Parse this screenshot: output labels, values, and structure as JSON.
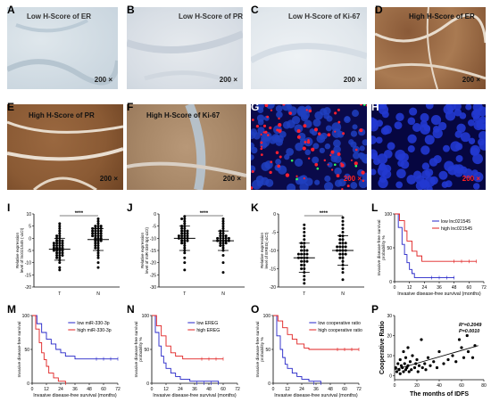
{
  "panels": {
    "A": {
      "letter": "A",
      "caption": "Low H-Score of ER",
      "mag": "200 ×"
    },
    "B": {
      "letter": "B",
      "caption": "Low H-Score of PR",
      "mag": "200 ×"
    },
    "C": {
      "letter": "C",
      "caption": "Low H-Score of Ki-67",
      "mag": "200 ×"
    },
    "D": {
      "letter": "D",
      "caption": "High H-Score of ER",
      "mag": "200 ×"
    },
    "E": {
      "letter": "E",
      "caption": "High H-Score of PR",
      "mag": "200 ×"
    },
    "F": {
      "letter": "F",
      "caption": "High H-Score of Ki-67",
      "mag": "200 ×"
    },
    "G": {
      "letter": "G",
      "caption": "",
      "mag": "200 ×"
    },
    "H": {
      "letter": "H",
      "caption": "",
      "mag": "200 ×"
    }
  },
  "chart_data": [
    {
      "id": "I",
      "type": "scatter",
      "ylabel": "Relative expression level of lnc021545 (-ΔCt)",
      "categories": [
        "T",
        "N"
      ],
      "yticks": [
        -20,
        -15,
        -10,
        -5,
        0,
        5,
        10
      ],
      "ylim": [
        -20,
        10
      ],
      "sig": "****",
      "series": [
        {
          "name": "T",
          "mean": -4.5,
          "sd": 4.5,
          "values": [
            -13,
            -12,
            -10,
            -9,
            -8,
            -8,
            -7,
            -7,
            -7,
            -6,
            -6,
            -6,
            -5,
            -5,
            -5,
            -5,
            -4,
            -4,
            -4,
            -4,
            -3,
            -3,
            -3,
            -3,
            -2,
            -2,
            -2,
            -2,
            -1,
            -1,
            -1,
            0,
            0,
            1,
            1,
            2,
            3,
            4,
            5,
            6
          ]
        },
        {
          "name": "N",
          "mean": -0.5,
          "sd": 4.5,
          "values": [
            -12,
            -10,
            -8,
            -7,
            -6,
            -5,
            -4,
            -4,
            -3,
            -3,
            -2,
            -2,
            -1,
            -1,
            -1,
            0,
            0,
            0,
            1,
            1,
            1,
            1,
            2,
            2,
            2,
            2,
            3,
            3,
            3,
            3,
            4,
            4,
            4,
            4,
            5,
            5,
            5,
            6,
            7,
            8
          ]
        }
      ]
    },
    {
      "id": "J",
      "type": "scatter",
      "ylabel": "Relative expression level of miR-330-3p(-ΔCt)",
      "categories": [
        "T",
        "N"
      ],
      "yticks": [
        -30,
        -25,
        -20,
        -15,
        -10,
        -5,
        0
      ],
      "ylim": [
        -30,
        0
      ],
      "sig": "****",
      "series": [
        {
          "name": "T",
          "mean": -10,
          "sd": 5,
          "values": [
            -23,
            -20,
            -18,
            -16,
            -15,
            -14,
            -13,
            -12,
            -12,
            -11,
            -11,
            -11,
            -10,
            -10,
            -10,
            -10,
            -9,
            -9,
            -9,
            -9,
            -8,
            -8,
            -8,
            -7,
            -7,
            -7,
            -6,
            -6,
            -5,
            -5,
            -4,
            -3,
            -2,
            -2,
            -1
          ]
        },
        {
          "name": "N",
          "mean": -11,
          "sd": 4,
          "values": [
            -24,
            -20,
            -17,
            -15,
            -14,
            -13,
            -13,
            -12,
            -12,
            -12,
            -11,
            -11,
            -11,
            -11,
            -11,
            -10,
            -10,
            -10,
            -10,
            -10,
            -9,
            -9,
            -9,
            -8,
            -8,
            -7,
            -7,
            -6,
            -5,
            -4,
            -3,
            -2
          ]
        }
      ]
    },
    {
      "id": "K",
      "type": "scatter",
      "ylabel": "Relative expression level of EREG(-ΔCt)",
      "categories": [
        "T",
        "N"
      ],
      "yticks": [
        -20,
        -15,
        -10,
        -5,
        0
      ],
      "ylim": [
        -20,
        0
      ],
      "sig": "****",
      "series": [
        {
          "name": "T",
          "mean": -12,
          "sd": 4,
          "values": [
            -19,
            -18,
            -17,
            -16,
            -15,
            -15,
            -14,
            -14,
            -13,
            -13,
            -13,
            -12,
            -12,
            -12,
            -12,
            -11,
            -11,
            -11,
            -11,
            -10,
            -10,
            -10,
            -9,
            -9,
            -8,
            -8,
            -7,
            -6,
            -5,
            -4,
            -3
          ]
        },
        {
          "name": "N",
          "mean": -10,
          "sd": 4,
          "values": [
            -18,
            -16,
            -15,
            -14,
            -13,
            -12,
            -12,
            -11,
            -11,
            -11,
            -10,
            -10,
            -10,
            -10,
            -9,
            -9,
            -9,
            -9,
            -8,
            -8,
            -8,
            -7,
            -7,
            -6,
            -6,
            -5,
            -4,
            -3,
            -2,
            -1
          ]
        }
      ]
    },
    {
      "id": "L",
      "type": "line",
      "ylabel": "Invasive disease-free survival probability %",
      "xlabel": "Invasive disease-free survival (months)",
      "xticks": [
        0,
        12,
        24,
        36,
        48,
        60,
        72
      ],
      "yticks": [
        0,
        50,
        100
      ],
      "xlim": [
        0,
        72
      ],
      "ylim": [
        0,
        100
      ],
      "series": [
        {
          "name": "low lnc021545",
          "color": "#2424c8",
          "x": [
            0,
            3,
            6,
            8,
            10,
            12,
            14,
            16,
            20,
            48
          ],
          "y": [
            100,
            80,
            55,
            40,
            28,
            18,
            12,
            6,
            6,
            6
          ]
        },
        {
          "name": "high lnc021545",
          "color": "#e02020",
          "x": [
            0,
            4,
            8,
            10,
            14,
            18,
            22,
            24,
            66
          ],
          "y": [
            100,
            90,
            75,
            60,
            45,
            38,
            30,
            30,
            30
          ]
        }
      ]
    },
    {
      "id": "M",
      "type": "line",
      "ylabel": "Invasive disease-free survival",
      "xlabel": "Invasive disease-free survival   (months)",
      "xticks": [
        0,
        12,
        24,
        36,
        48,
        60,
        72
      ],
      "yticks": [
        0,
        50,
        100
      ],
      "xlim": [
        0,
        72
      ],
      "ylim": [
        0,
        100
      ],
      "series": [
        {
          "name": "low miR-330-3p",
          "color": "#2424c8",
          "x": [
            0,
            4,
            8,
            12,
            16,
            20,
            24,
            28,
            36,
            72
          ],
          "y": [
            100,
            88,
            75,
            65,
            58,
            50,
            45,
            40,
            36,
            36
          ]
        },
        {
          "name": "high miR-330-3p",
          "color": "#e02020",
          "x": [
            0,
            3,
            6,
            8,
            10,
            12,
            14,
            18,
            22,
            28
          ],
          "y": [
            100,
            80,
            60,
            45,
            35,
            25,
            15,
            8,
            3,
            0
          ]
        }
      ]
    },
    {
      "id": "N",
      "type": "line",
      "ylabel": "Invasive disease-free survival probability %",
      "xlabel": "Invasive disease-free survival   (months)",
      "xticks": [
        0,
        12,
        24,
        36,
        48,
        60,
        72
      ],
      "yticks": [
        0,
        50,
        100
      ],
      "xlim": [
        0,
        72
      ],
      "ylim": [
        0,
        100
      ],
      "series": [
        {
          "name": "low EREG",
          "color": "#2424c8",
          "x": [
            0,
            3,
            6,
            8,
            10,
            12,
            16,
            20,
            24,
            32,
            56
          ],
          "y": [
            100,
            75,
            55,
            40,
            30,
            22,
            15,
            10,
            6,
            3,
            0
          ]
        },
        {
          "name": "high EREG",
          "color": "#e02020",
          "x": [
            0,
            4,
            8,
            12,
            16,
            20,
            26,
            60
          ],
          "y": [
            100,
            85,
            70,
            55,
            45,
            40,
            36,
            36
          ]
        }
      ]
    },
    {
      "id": "O",
      "type": "line",
      "ylabel": "Invasive disease-free survival probability %",
      "xlabel": "Invasive disease-free survival   (months)",
      "xticks": [
        0,
        12,
        24,
        36,
        48,
        60,
        72
      ],
      "yticks": [
        0,
        50,
        100
      ],
      "xlim": [
        0,
        72
      ],
      "ylim": [
        0,
        100
      ],
      "series": [
        {
          "name": "low cooperative ratio",
          "color": "#2424c8",
          "x": [
            0,
            3,
            6,
            8,
            10,
            12,
            16,
            20,
            24,
            30,
            40
          ],
          "y": [
            100,
            70,
            50,
            38,
            28,
            22,
            15,
            10,
            6,
            3,
            0
          ]
        },
        {
          "name": "high cooperative ratio",
          "color": "#e02020",
          "x": [
            0,
            4,
            8,
            12,
            16,
            20,
            26,
            30,
            36,
            72
          ],
          "y": [
            100,
            92,
            82,
            72,
            65,
            58,
            52,
            50,
            50,
            50
          ]
        }
      ]
    },
    {
      "id": "P",
      "type": "scatter",
      "xlabel": "The months of IDFS",
      "ylabel": "Cooperative Ratio",
      "xticks": [
        0,
        20,
        40,
        60,
        80
      ],
      "yticks": [
        0,
        10,
        20,
        30
      ],
      "xlim": [
        0,
        80
      ],
      "ylim": [
        -2,
        30
      ],
      "annotations": [
        "R²=0.2049",
        "P=0.0010"
      ],
      "x": [
        1,
        2,
        3,
        4,
        5,
        5,
        6,
        7,
        8,
        8,
        9,
        10,
        10,
        11,
        12,
        12,
        13,
        14,
        15,
        16,
        18,
        19,
        20,
        21,
        22,
        24,
        25,
        27,
        28,
        30,
        32,
        35,
        38,
        40,
        44,
        48,
        52,
        55,
        58,
        60,
        62,
        65,
        66,
        70,
        72
      ],
      "y": [
        4,
        2,
        6,
        3,
        8,
        1,
        5,
        4,
        2,
        12,
        6,
        3,
        9,
        4,
        5,
        14,
        2,
        7,
        3,
        10,
        4,
        6,
        8,
        2,
        5,
        18,
        4,
        6,
        3,
        9,
        5,
        7,
        4,
        12,
        6,
        8,
        10,
        7,
        18,
        14,
        9,
        20,
        12,
        9,
        15
      ],
      "fit": {
        "x": [
          0,
          75
        ],
        "y": [
          3,
          15
        ]
      }
    }
  ]
}
